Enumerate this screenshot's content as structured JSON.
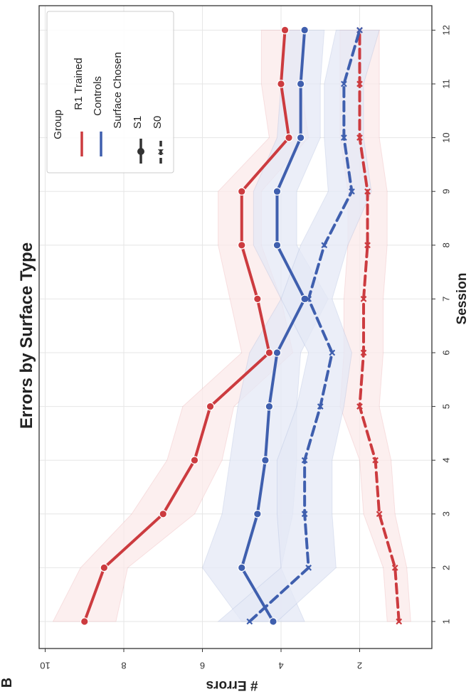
{
  "panel_label": "B",
  "colors": {
    "r1_trained": "#cc3b3f",
    "controls": "#3f5fae",
    "grid": "#e6e6e6",
    "axis": "#333333",
    "ci_r1": "#fbe9ea",
    "ci_controls": "#e4e8f5"
  },
  "chart_data": {
    "type": "line",
    "title": "Errors by Surface Type",
    "xlabel": "Session",
    "ylabel": "# Errors",
    "orientation": "rotated 90 degrees clockwise (x axis vertical on right, y axis horizontal at bottom)",
    "x": [
      1,
      2,
      3,
      4,
      5,
      6,
      7,
      8,
      9,
      10,
      11,
      12
    ],
    "xlim": [
      0.5,
      12.5
    ],
    "ylim": [
      0.1,
      10.2
    ],
    "yticks": [
      2,
      4,
      6,
      8,
      10
    ],
    "grid": true,
    "legend": {
      "placement": "top-right",
      "group_title": "Group",
      "group_entries": [
        "R1 Trained",
        "Controls"
      ],
      "style_title": "Surface Chosen",
      "style_entries": [
        "S1",
        "S0"
      ]
    },
    "series": [
      {
        "name": "R1 Trained S1",
        "group": "R1 Trained",
        "style": "S1",
        "values": [
          9.0,
          8.5,
          7.0,
          6.2,
          5.8,
          4.3,
          4.6,
          5.0,
          5.0,
          3.8,
          4.0,
          3.9
        ],
        "ci_low": [
          8.2,
          7.9,
          6.2,
          5.5,
          5.2,
          3.7,
          4.0,
          4.5,
          4.5,
          3.3,
          3.5,
          3.4
        ],
        "ci_high": [
          9.8,
          9.1,
          7.8,
          6.9,
          6.5,
          5.0,
          5.3,
          5.6,
          5.6,
          4.3,
          4.5,
          4.5
        ]
      },
      {
        "name": "R1 Trained S0",
        "group": "R1 Trained",
        "style": "S0",
        "values": [
          1.0,
          1.1,
          1.5,
          1.6,
          2.0,
          1.9,
          1.9,
          1.8,
          1.8,
          2.0,
          2.0,
          2.0
        ],
        "ci_low": [
          0.7,
          0.8,
          1.1,
          1.2,
          1.5,
          1.4,
          1.4,
          1.3,
          1.3,
          1.5,
          1.5,
          1.5
        ],
        "ci_high": [
          1.3,
          1.4,
          1.9,
          2.0,
          2.5,
          2.4,
          2.4,
          2.3,
          2.3,
          2.5,
          2.5,
          2.5
        ]
      },
      {
        "name": "Controls S1",
        "group": "Controls",
        "style": "S1",
        "values": [
          4.2,
          5.0,
          4.6,
          4.4,
          4.3,
          4.1,
          3.4,
          4.1,
          4.1,
          3.5,
          3.5,
          3.4
        ],
        "ci_low": [
          3.4,
          4.0,
          3.7,
          3.6,
          3.6,
          3.5,
          2.8,
          3.6,
          3.6,
          3.0,
          3.0,
          2.9
        ],
        "ci_high": [
          5.0,
          6.0,
          5.5,
          5.3,
          5.1,
          4.8,
          4.0,
          4.7,
          4.7,
          4.1,
          4.0,
          3.9
        ]
      },
      {
        "name": "Controls S0",
        "group": "Controls",
        "style": "S0",
        "values": [
          4.8,
          3.3,
          3.4,
          3.4,
          3.0,
          2.7,
          3.3,
          2.9,
          2.2,
          2.4,
          2.4,
          2.0
        ],
        "ci_low": [
          4.1,
          2.6,
          2.7,
          2.7,
          2.4,
          2.2,
          2.7,
          2.3,
          1.7,
          1.9,
          1.9,
          1.5
        ],
        "ci_high": [
          5.6,
          4.0,
          4.1,
          4.1,
          3.6,
          3.3,
          4.0,
          3.5,
          2.8,
          2.9,
          2.9,
          2.6
        ]
      }
    ]
  }
}
